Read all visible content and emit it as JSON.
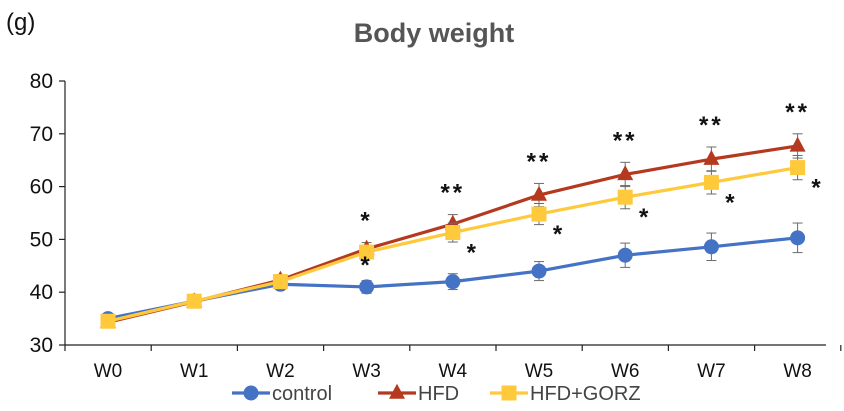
{
  "chart_data": {
    "type": "line",
    "title": "Body weight",
    "y_unit_label": "(g)",
    "xlabel": "",
    "ylabel": "",
    "categories": [
      "W0",
      "W1",
      "W2",
      "W3",
      "W4",
      "W5",
      "W6",
      "W7",
      "W8"
    ],
    "ylim": [
      30,
      80
    ],
    "yticks": [
      30,
      40,
      50,
      60,
      70,
      80
    ],
    "grid": false,
    "legend_position": "bottom",
    "series": [
      {
        "name": "control",
        "color": "#4472C4",
        "marker": "circle",
        "values": [
          35.0,
          38.3,
          41.5,
          41.0,
          42.0,
          44.0,
          47.0,
          48.6,
          50.3
        ],
        "errors": [
          0.6,
          1.0,
          1.0,
          1.2,
          1.5,
          1.8,
          2.3,
          2.6,
          2.8
        ],
        "annotations": [
          "",
          "",
          "",
          "*",
          "",
          "",
          "",
          "",
          ""
        ]
      },
      {
        "name": "HFD",
        "color": "#B5391E",
        "marker": "triangle",
        "values": [
          34.3,
          38.2,
          42.3,
          48.2,
          52.9,
          58.4,
          62.3,
          65.2,
          67.7
        ],
        "errors": [
          0.6,
          1.0,
          1.0,
          1.2,
          1.8,
          2.2,
          2.3,
          2.3,
          2.3
        ],
        "annotations": [
          "",
          "",
          "",
          "*",
          "**",
          "**",
          "**",
          "**",
          "**"
        ]
      },
      {
        "name": "HFD+GORZ",
        "color": "#FFC93C",
        "marker": "square",
        "values": [
          34.5,
          38.3,
          42.0,
          47.6,
          51.3,
          54.8,
          58.0,
          60.8,
          63.6
        ],
        "errors": [
          0.6,
          1.0,
          1.0,
          1.2,
          1.8,
          2.0,
          2.2,
          2.2,
          2.3
        ],
        "annotations": [
          "",
          "",
          "",
          "",
          "*",
          "*",
          "*",
          "*",
          "*"
        ]
      }
    ]
  }
}
